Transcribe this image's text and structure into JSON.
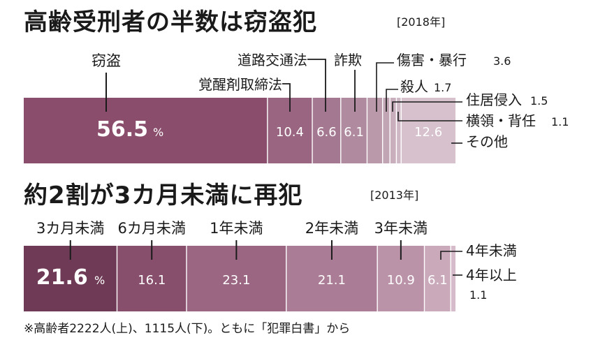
{
  "chart_data": [
    {
      "type": "bar",
      "stacked": true,
      "orientation": "horizontal",
      "title": "高齢受刑者の半数は窃盗犯",
      "subtitle": "[2018年]",
      "unit": "%",
      "segments": [
        {
          "name": "窃盗",
          "value": 56.5,
          "value_label": "56.5",
          "unit_label": "%",
          "color": "#8a4d6c"
        },
        {
          "name": "覚醒剤取締法",
          "value": 10.4,
          "value_label": "10.4",
          "color": "#9a6581"
        },
        {
          "name": "道路交通法",
          "value": 6.6,
          "value_label": "6.6",
          "color": "#a57891"
        },
        {
          "name": "詐欺",
          "value": 6.1,
          "value_label": "6.1",
          "color": "#b08a9f"
        },
        {
          "name": "傷害・暴行",
          "value": 3.6,
          "value_label": "3.6",
          "color": "#ba99ab"
        },
        {
          "name": "殺人",
          "value": 1.7,
          "value_label": "1.7",
          "color": "#c2a5b5"
        },
        {
          "name": "住居侵入",
          "value": 1.5,
          "value_label": "1.5",
          "color": "#c9afbe"
        },
        {
          "name": "横領・背任",
          "value": 1.1,
          "value_label": "1.1",
          "color": "#cfb8c5"
        },
        {
          "name": "その他",
          "value": 12.6,
          "value_label": "12.6",
          "color": "#d6c1cd"
        }
      ]
    },
    {
      "type": "bar",
      "stacked": true,
      "orientation": "horizontal",
      "title": "約2割が3カ月未満に再犯",
      "subtitle": "[2013年]",
      "unit": "%",
      "segments": [
        {
          "name": "3カ月未満",
          "value": 21.6,
          "value_label": "21.6",
          "unit_label": "%",
          "color": "#6e3a55"
        },
        {
          "name": "6カ月未満",
          "value": 16.1,
          "value_label": "16.1",
          "color": "#874f6c"
        },
        {
          "name": "1年未満",
          "value": 23.1,
          "value_label": "23.1",
          "color": "#9a6682"
        },
        {
          "name": "2年未満",
          "value": 21.1,
          "value_label": "21.1",
          "color": "#ab7c95"
        },
        {
          "name": "3年未満",
          "value": 10.9,
          "value_label": "10.9",
          "color": "#bb93a8"
        },
        {
          "name": "4年未満",
          "value": 6.1,
          "value_label": "6.1",
          "color": "#caa9ba"
        },
        {
          "name": "4年以上",
          "value": 1.1,
          "value_label": "1.1",
          "color": "#d6bcca"
        }
      ]
    }
  ],
  "footnote": "※高齢者2222人(上)、1115人(下)。ともに「犯罪白書」から"
}
